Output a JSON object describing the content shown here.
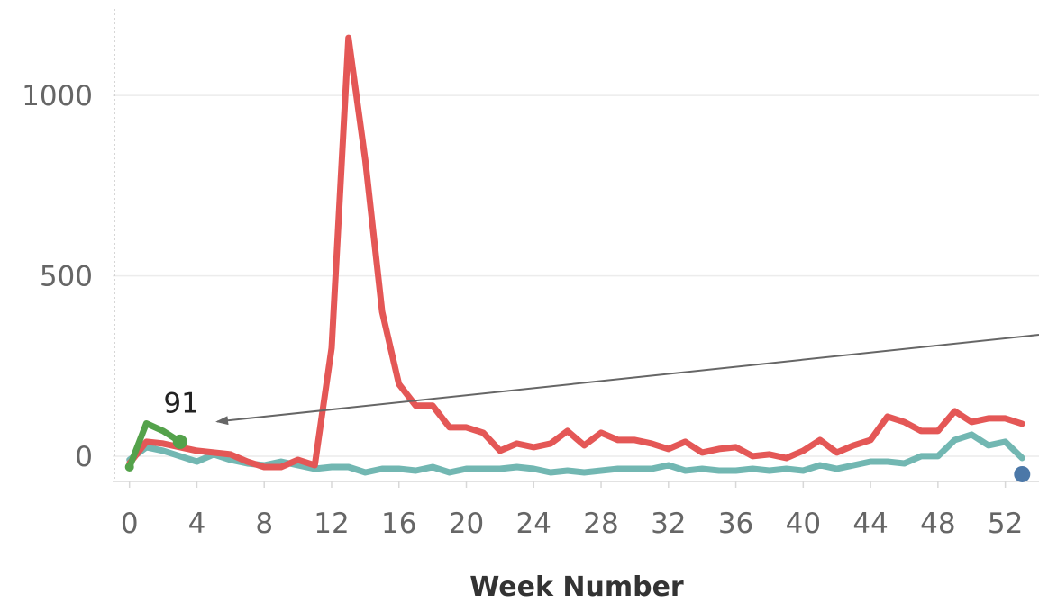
{
  "chart_data": {
    "type": "line",
    "title": "",
    "xlabel": "Week Number",
    "ylabel": "",
    "xlim": [
      -1,
      54
    ],
    "ylim": [
      -70,
      1240
    ],
    "x_ticks": [
      0,
      4,
      8,
      12,
      16,
      20,
      24,
      28,
      32,
      36,
      40,
      44,
      48,
      52
    ],
    "y_ticks": [
      0,
      500,
      1000
    ],
    "grid": true,
    "colors": {
      "red": "#e45756",
      "teal": "#72b7b2",
      "green": "#54a24b",
      "blue": "#4c78a8",
      "arrow": "#666666"
    },
    "series": [
      {
        "color": "red",
        "x": [
          0,
          1,
          2,
          3,
          4,
          5,
          6,
          7,
          8,
          9,
          10,
          11,
          12,
          13,
          14,
          15,
          16,
          17,
          18,
          19,
          20,
          21,
          22,
          23,
          24,
          25,
          26,
          27,
          28,
          29,
          30,
          31,
          32,
          33,
          34,
          35,
          36,
          37,
          38,
          39,
          40,
          41,
          42,
          43,
          44,
          45,
          46,
          47,
          48,
          49,
          50,
          51,
          52,
          53
        ],
        "y": [
          -20,
          40,
          35,
          25,
          15,
          10,
          5,
          -15,
          -30,
          -30,
          -10,
          -25,
          300,
          1160,
          820,
          400,
          200,
          140,
          140,
          80,
          80,
          65,
          15,
          35,
          25,
          35,
          70,
          30,
          65,
          45,
          45,
          35,
          20,
          40,
          10,
          20,
          25,
          0,
          5,
          -5,
          15,
          45,
          10,
          30,
          45,
          110,
          95,
          70,
          70,
          125,
          95,
          105,
          105,
          90
        ]
      },
      {
        "color": "teal",
        "x": [
          0,
          1,
          2,
          3,
          4,
          5,
          6,
          7,
          8,
          9,
          10,
          11,
          12,
          13,
          14,
          15,
          16,
          17,
          18,
          19,
          20,
          21,
          22,
          23,
          24,
          25,
          26,
          27,
          28,
          29,
          30,
          31,
          32,
          33,
          34,
          35,
          36,
          37,
          38,
          39,
          40,
          41,
          42,
          43,
          44,
          45,
          46,
          47,
          48,
          49,
          50,
          51,
          52,
          53
        ],
        "y": [
          -10,
          25,
          15,
          0,
          -15,
          5,
          -10,
          -20,
          -25,
          -15,
          -25,
          -35,
          -30,
          -30,
          -45,
          -35,
          -35,
          -40,
          -30,
          -45,
          -35,
          -35,
          -35,
          -30,
          -35,
          -45,
          -40,
          -45,
          -40,
          -35,
          -35,
          -35,
          -25,
          -40,
          -35,
          -40,
          -40,
          -35,
          -40,
          -35,
          -40,
          -25,
          -35,
          -25,
          -15,
          -15,
          -20,
          0,
          0,
          45,
          60,
          30,
          40,
          -5
        ]
      },
      {
        "color": "green",
        "x": [
          0,
          1,
          2,
          3
        ],
        "y": [
          -30,
          91,
          70,
          40
        ]
      }
    ],
    "points": [
      {
        "color": "blue",
        "x": 53,
        "y": -50
      }
    ],
    "annotations": [
      {
        "text": "91",
        "x": 2,
        "y": 91
      }
    ]
  }
}
